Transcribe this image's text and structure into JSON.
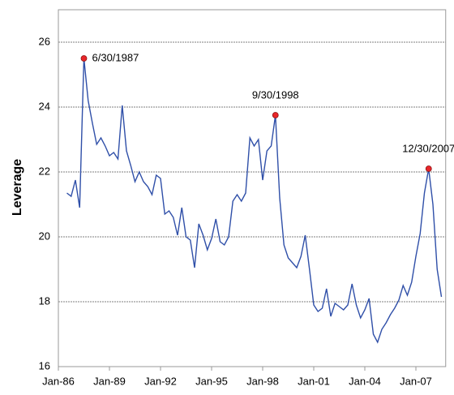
{
  "chart_data": {
    "type": "line",
    "ylabel": "Leverage",
    "x": [
      1986.5,
      1986.75,
      1987,
      1987.25,
      1987.5,
      1987.75,
      1988,
      1988.25,
      1988.5,
      1988.75,
      1989,
      1989.25,
      1989.5,
      1989.75,
      1990,
      1990.25,
      1990.5,
      1990.75,
      1991,
      1991.25,
      1991.5,
      1991.75,
      1992,
      1992.25,
      1992.5,
      1992.75,
      1993,
      1993.25,
      1993.5,
      1993.75,
      1994,
      1994.25,
      1994.5,
      1994.75,
      1995,
      1995.25,
      1995.5,
      1995.75,
      1996,
      1996.25,
      1996.5,
      1996.75,
      1997,
      1997.25,
      1997.5,
      1997.75,
      1998,
      1998.25,
      1998.5,
      1998.75,
      1999,
      1999.25,
      1999.5,
      1999.75,
      2000,
      2000.25,
      2000.5,
      2000.75,
      2001,
      2001.25,
      2001.5,
      2001.75,
      2002,
      2002.25,
      2002.5,
      2002.75,
      2003,
      2003.25,
      2003.5,
      2003.75,
      2004,
      2004.25,
      2004.5,
      2004.75,
      2005,
      2005.25,
      2005.5,
      2005.75,
      2006,
      2006.25,
      2006.5,
      2006.75,
      2007,
      2007.25,
      2007.5,
      2007.75,
      2008,
      2008.25,
      2008.5
    ],
    "series": [
      {
        "color": "#2f4fa8",
        "values": [
          21.35,
          21.25,
          21.75,
          20.9,
          25.5,
          24.2,
          23.5,
          22.85,
          23.05,
          22.8,
          22.5,
          22.6,
          22.4,
          24.05,
          22.65,
          22.2,
          21.7,
          22.0,
          21.7,
          21.55,
          21.3,
          21.9,
          21.8,
          20.7,
          20.8,
          20.6,
          20.05,
          20.9,
          20.0,
          19.9,
          19.05,
          20.4,
          20.05,
          19.6,
          19.95,
          20.55,
          19.85,
          19.75,
          20.0,
          21.1,
          21.3,
          21.1,
          21.35,
          23.05,
          22.8,
          23.0,
          21.75,
          22.65,
          22.8,
          23.75,
          21.2,
          19.75,
          19.35,
          19.2,
          19.05,
          19.4,
          20.05,
          19.0,
          17.9,
          17.7,
          17.8,
          18.4,
          17.55,
          17.95,
          17.85,
          17.75,
          17.9,
          18.55,
          17.9,
          17.5,
          17.75,
          18.1,
          17.0,
          16.75,
          17.15,
          17.35,
          17.6,
          17.8,
          18.05,
          18.5,
          18.2,
          18.6,
          19.4,
          20.1,
          21.35,
          22.1,
          21.0,
          19.0,
          18.15
        ]
      }
    ],
    "annotations": [
      {
        "text": "6/30/1987",
        "x": 1987.5,
        "y": 25.5,
        "color": "#e8262a"
      },
      {
        "text": "9/30/1998",
        "x": 1998.75,
        "y": 23.75,
        "color": "#e8262a"
      },
      {
        "text": "12/30/2007",
        "x": 2007.75,
        "y": 22.1,
        "color": "#e8262a"
      }
    ],
    "xlim": [
      1986,
      2008.75
    ],
    "xticks": [
      {
        "value": 1986,
        "label": "Jan-86"
      },
      {
        "value": 1989,
        "label": "Jan-89"
      },
      {
        "value": 1992,
        "label": "Jan-92"
      },
      {
        "value": 1995,
        "label": "Jan-95"
      },
      {
        "value": 1998,
        "label": "Jan-98"
      },
      {
        "value": 2001,
        "label": "Jan-01"
      },
      {
        "value": 2004,
        "label": "Jan-04"
      },
      {
        "value": 2007,
        "label": "Jan-07"
      }
    ],
    "ylim": [
      16,
      27
    ],
    "yticks": [
      16,
      18,
      20,
      22,
      24,
      26
    ],
    "grid": true
  }
}
